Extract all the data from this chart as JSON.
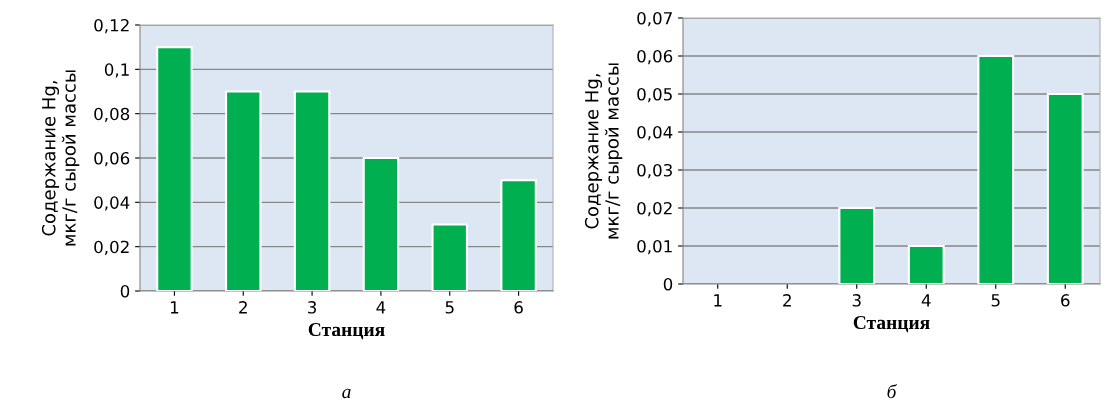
{
  "chart_data": [
    {
      "type": "bar",
      "categories": [
        "1",
        "2",
        "3",
        "4",
        "5",
        "6"
      ],
      "values": [
        0.11,
        0.09,
        0.09,
        0.06,
        0.03,
        0.05
      ],
      "color": "#00b050",
      "xlabel": "Станция",
      "ylabel": "Содержание Hg,\nмкг/г сырой массы",
      "ylim": [
        0,
        0.12
      ],
      "yticks": [
        {
          "value": 0,
          "label": "0"
        },
        {
          "value": 0.02,
          "label": "0,02"
        },
        {
          "value": 0.04,
          "label": "0,04"
        },
        {
          "value": 0.06,
          "label": "0,06"
        },
        {
          "value": 0.08,
          "label": "0,08"
        },
        {
          "value": 0.1,
          "label": "0,1"
        },
        {
          "value": 0.12,
          "label": "0,12"
        }
      ],
      "grid": "y",
      "annotations": [
        "а"
      ]
    },
    {
      "type": "bar",
      "categories": [
        "1",
        "2",
        "3",
        "4",
        "5",
        "6"
      ],
      "values": [
        null,
        null,
        0.02,
        0.01,
        0.06,
        0.05
      ],
      "color": "#00b050",
      "xlabel": "Станция",
      "ylabel": "Содержание Hg,\nмкг/г сырой массы",
      "ylim": [
        0,
        0.07
      ],
      "yticks": [
        {
          "value": 0,
          "label": "0"
        },
        {
          "value": 0.01,
          "label": "0,01"
        },
        {
          "value": 0.02,
          "label": "0,02"
        },
        {
          "value": 0.03,
          "label": "0,03"
        },
        {
          "value": 0.04,
          "label": "0,04"
        },
        {
          "value": 0.05,
          "label": "0,05"
        },
        {
          "value": 0.06,
          "label": "0,06"
        },
        {
          "value": 0.07,
          "label": "0,07"
        }
      ],
      "grid": "y",
      "annotations": [
        "б"
      ]
    }
  ]
}
